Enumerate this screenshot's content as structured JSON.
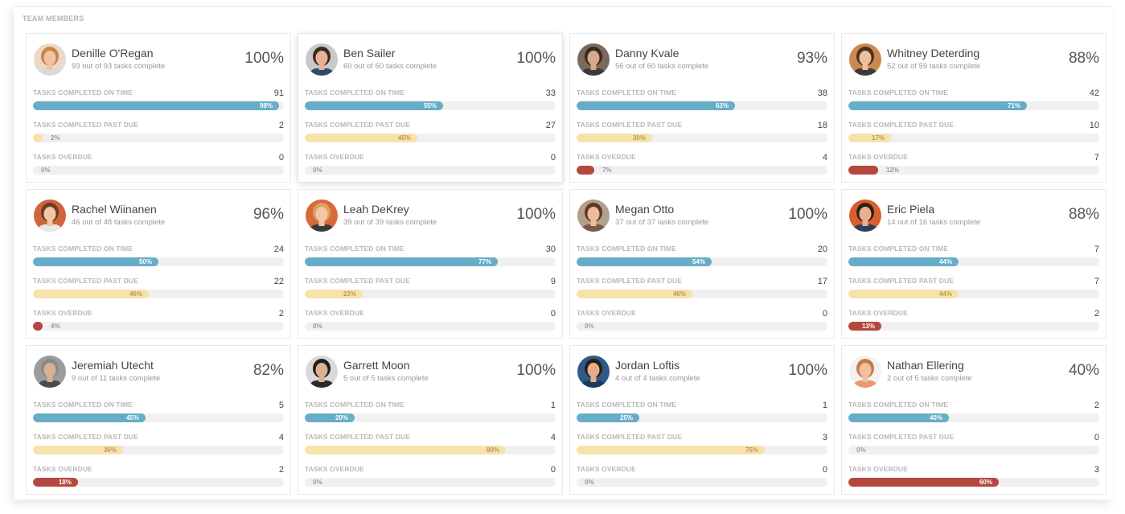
{
  "section": {
    "title": "TEAM MEMBERS"
  },
  "labels": {
    "on_time": "TASKS COMPLETED ON TIME",
    "past_due": "TASKS COMPLETED PAST DUE",
    "overdue": "TASKS OVERDUE"
  },
  "colors": {
    "on_time": "#67adc7",
    "past_due": "#f7e2ab",
    "overdue": "#b6473f",
    "track": "#f0f0f0"
  },
  "members": [
    {
      "name": "Denille O'Regan",
      "summary": "93 out of 93 tasks complete",
      "percent": "100%",
      "avatar": {
        "skin": "#f2c2a0",
        "hair": "#c9844a",
        "bg": "#e8d9c8",
        "shirt": "#d9d9d9"
      },
      "on_time": {
        "count": "91",
        "pct": "98%",
        "value": 98
      },
      "past_due": {
        "count": "2",
        "pct": "2%",
        "value": 2
      },
      "overdue": {
        "count": "0",
        "pct": "0%",
        "value": 0
      }
    },
    {
      "name": "Ben Sailer",
      "summary": "60 out of 60 tasks complete",
      "percent": "100%",
      "avatar": {
        "skin": "#e6b394",
        "hair": "#3a2a20",
        "bg": "#c9c9c9",
        "shirt": "#2f4a6e"
      },
      "on_time": {
        "count": "33",
        "pct": "55%",
        "value": 55
      },
      "past_due": {
        "count": "27",
        "pct": "45%",
        "value": 45
      },
      "overdue": {
        "count": "0",
        "pct": "0%",
        "value": 0
      }
    },
    {
      "name": "Danny Kvale",
      "summary": "56 out of 60 tasks complete",
      "percent": "93%",
      "avatar": {
        "skin": "#d9a88a",
        "hair": "#3b2b22",
        "bg": "#7a6a5a",
        "shirt": "#3a3a3a"
      },
      "on_time": {
        "count": "38",
        "pct": "63%",
        "value": 63
      },
      "past_due": {
        "count": "18",
        "pct": "30%",
        "value": 30
      },
      "overdue": {
        "count": "4",
        "pct": "7%",
        "value": 7
      }
    },
    {
      "name": "Whitney Deterding",
      "summary": "52 out of 59 tasks complete",
      "percent": "88%",
      "avatar": {
        "skin": "#eec0a0",
        "hair": "#4a3220",
        "bg": "#c98a4e",
        "shirt": "#3b3b3b"
      },
      "on_time": {
        "count": "42",
        "pct": "71%",
        "value": 71
      },
      "past_due": {
        "count": "10",
        "pct": "17%",
        "value": 17
      },
      "overdue": {
        "count": "7",
        "pct": "12%",
        "value": 12
      }
    },
    {
      "name": "Rachel Wiinanen",
      "summary": "46 out of 48 tasks complete",
      "percent": "96%",
      "avatar": {
        "skin": "#f0c4a4",
        "hair": "#6b3d22",
        "bg": "#d0643c",
        "shirt": "#e8e8e8"
      },
      "on_time": {
        "count": "24",
        "pct": "50%",
        "value": 50
      },
      "past_due": {
        "count": "22",
        "pct": "46%",
        "value": 46
      },
      "overdue": {
        "count": "2",
        "pct": "4%",
        "value": 4
      }
    },
    {
      "name": "Leah DeKrey",
      "summary": "39 out of 39 tasks complete",
      "percent": "100%",
      "avatar": {
        "skin": "#f1c6a6",
        "hair": "#d9a060",
        "bg": "#d86a3a",
        "shirt": "#3a3a3a"
      },
      "on_time": {
        "count": "30",
        "pct": "77%",
        "value": 77
      },
      "past_due": {
        "count": "9",
        "pct": "23%",
        "value": 23
      },
      "overdue": {
        "count": "0",
        "pct": "0%",
        "value": 0
      }
    },
    {
      "name": "Megan Otto",
      "summary": "37 out of 37 tasks complete",
      "percent": "100%",
      "avatar": {
        "skin": "#eebc9c",
        "hair": "#5a3a26",
        "bg": "#b3a08c",
        "shirt": "#7a5a4a"
      },
      "on_time": {
        "count": "20",
        "pct": "54%",
        "value": 54
      },
      "past_due": {
        "count": "17",
        "pct": "46%",
        "value": 46
      },
      "overdue": {
        "count": "0",
        "pct": "0%",
        "value": 0
      }
    },
    {
      "name": "Eric Piela",
      "summary": "14 out of 16 tasks complete",
      "percent": "88%",
      "avatar": {
        "skin": "#e8b090",
        "hair": "#2e2018",
        "bg": "#d8602e",
        "shirt": "#2f3f5a"
      },
      "on_time": {
        "count": "7",
        "pct": "44%",
        "value": 44
      },
      "past_due": {
        "count": "7",
        "pct": "44%",
        "value": 44
      },
      "overdue": {
        "count": "2",
        "pct": "13%",
        "value": 13
      }
    },
    {
      "name": "Jeremiah Utecht",
      "summary": "9 out of 11 tasks complete",
      "percent": "82%",
      "avatar": {
        "skin": "#d8b094",
        "hair": "#8a8a8a",
        "bg": "#9c9c9c",
        "shirt": "#4a4a4a"
      },
      "on_time": {
        "count": "5",
        "pct": "45%",
        "value": 45
      },
      "past_due": {
        "count": "4",
        "pct": "36%",
        "value": 36
      },
      "overdue": {
        "count": "2",
        "pct": "18%",
        "value": 18
      }
    },
    {
      "name": "Garrett Moon",
      "summary": "5 out of 5 tasks complete",
      "percent": "100%",
      "avatar": {
        "skin": "#e0b092",
        "hair": "#1e1e1e",
        "bg": "#d9d9d9",
        "shirt": "#2a2a2a"
      },
      "on_time": {
        "count": "1",
        "pct": "20%",
        "value": 20
      },
      "past_due": {
        "count": "4",
        "pct": "80%",
        "value": 80
      },
      "overdue": {
        "count": "0",
        "pct": "0%",
        "value": 0
      }
    },
    {
      "name": "Jordan Loftis",
      "summary": "4 out of 4 tasks complete",
      "percent": "100%",
      "avatar": {
        "skin": "#e4ae8c",
        "hair": "#2a1e16",
        "bg": "#2e5a8a",
        "shirt": "#1e3a5a"
      },
      "on_time": {
        "count": "1",
        "pct": "25%",
        "value": 25
      },
      "past_due": {
        "count": "3",
        "pct": "75%",
        "value": 75
      },
      "overdue": {
        "count": "0",
        "pct": "0%",
        "value": 0
      }
    },
    {
      "name": "Nathan Ellering",
      "summary": "2 out of 5 tasks complete",
      "percent": "40%",
      "avatar": {
        "skin": "#f0c0a0",
        "hair": "#c87a48",
        "bg": "#f2f2f2",
        "shirt": "#e89a6a"
      },
      "on_time": {
        "count": "2",
        "pct": "40%",
        "value": 40
      },
      "past_due": {
        "count": "0",
        "pct": "0%",
        "value": 0
      },
      "overdue": {
        "count": "3",
        "pct": "60%",
        "value": 60
      }
    }
  ]
}
